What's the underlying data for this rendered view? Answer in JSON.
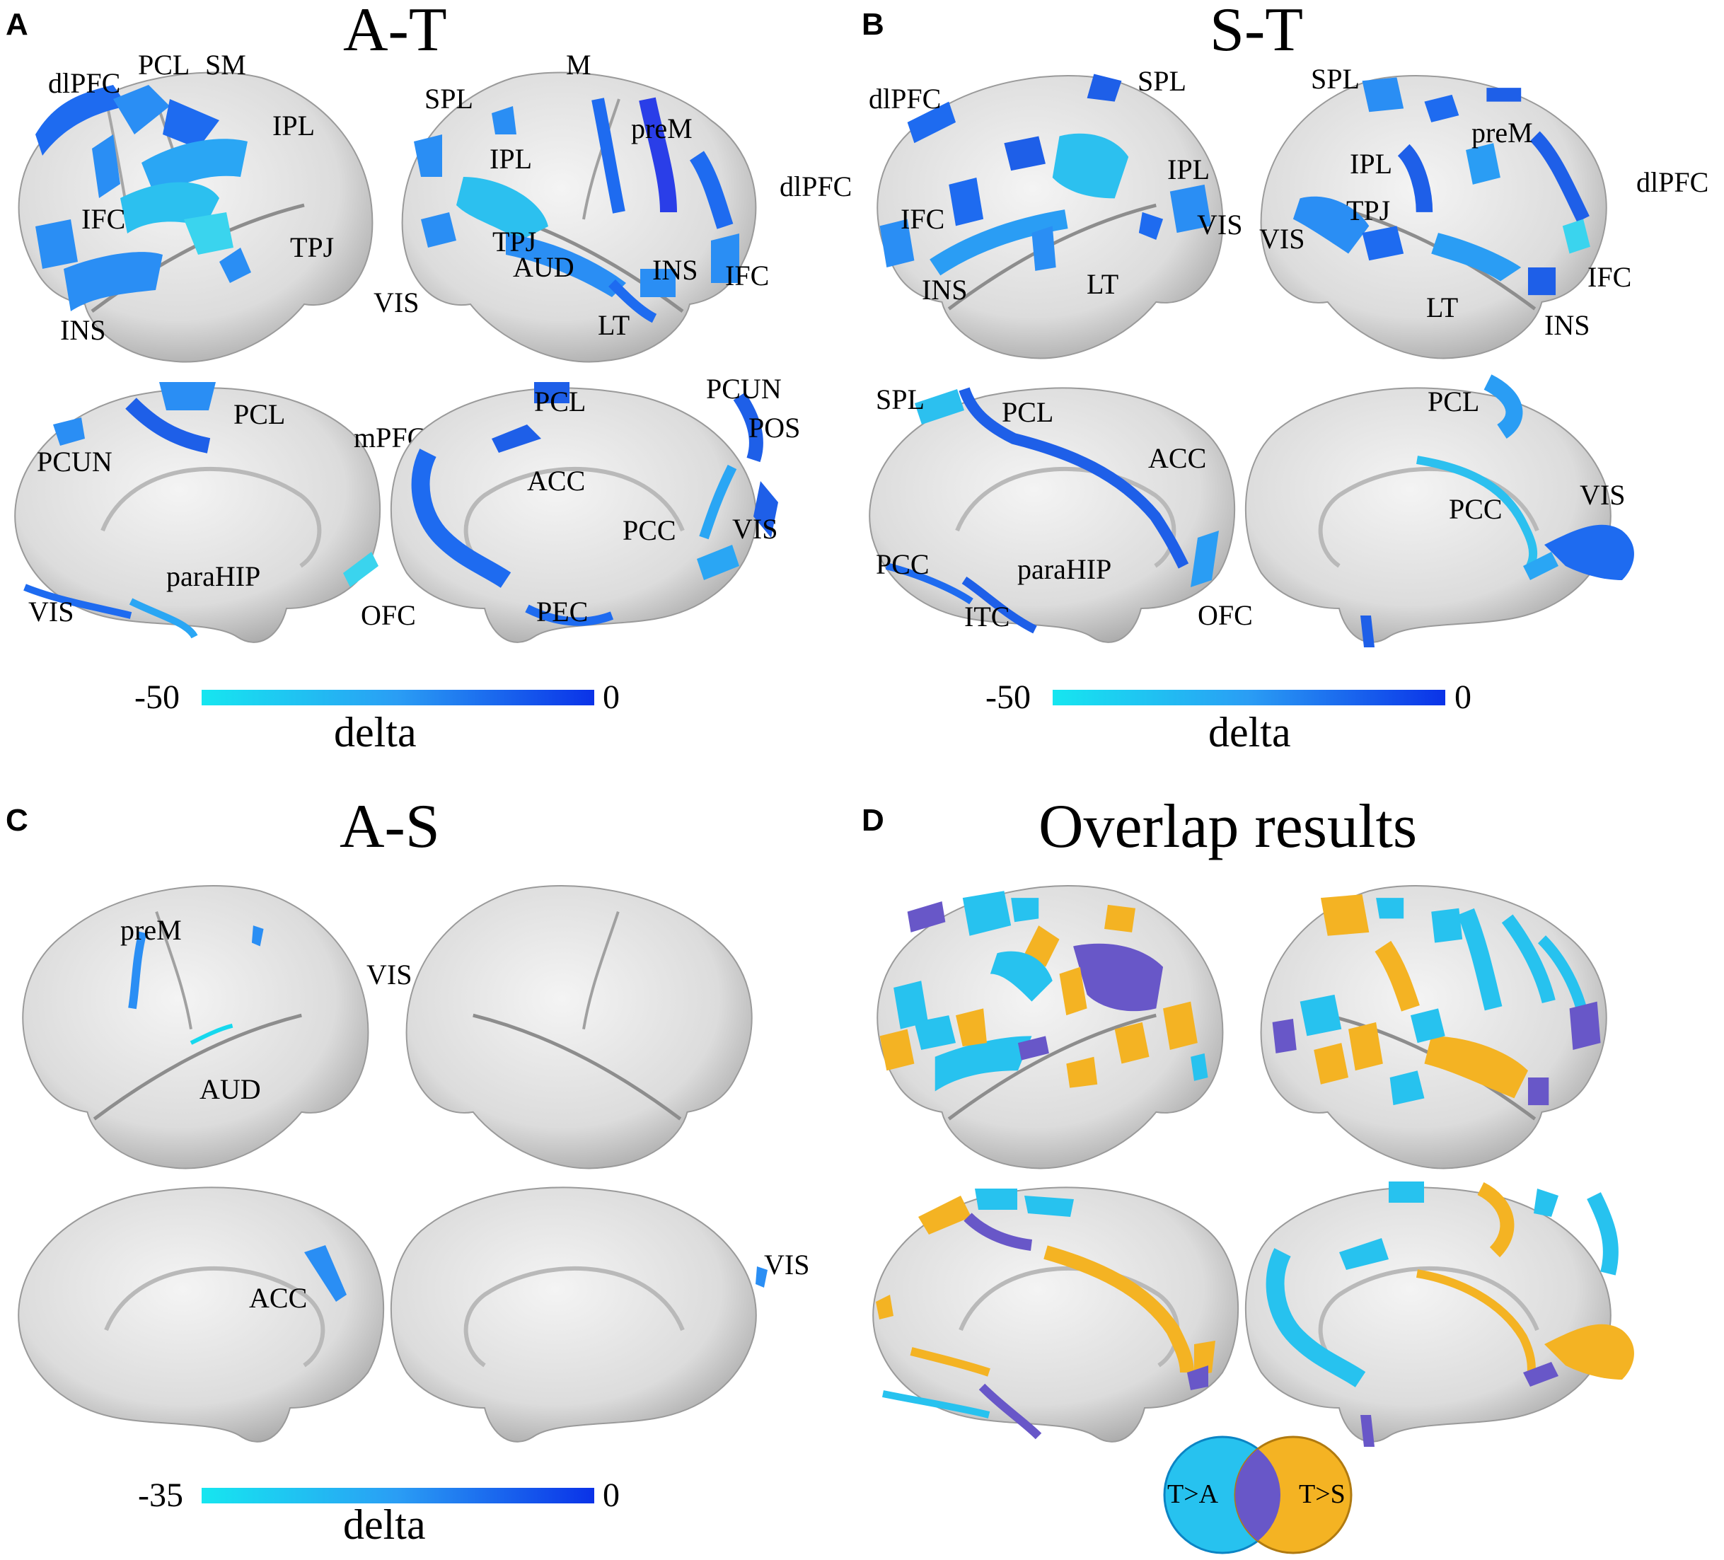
{
  "colors": {
    "brain_fill": "#d9d9d9",
    "blue_light": "#16d8ee",
    "blue_mid": "#2a9df4",
    "blue_dark": "#1240e0",
    "orange": "#f4b323",
    "purple": "#6857c8",
    "cyan_overlap": "#27c2ef"
  },
  "panels": {
    "A": {
      "letter": "A",
      "title": "A-T",
      "labels": {
        "dlPFC": "dlPFC",
        "PCL": "PCL",
        "SM": "SM",
        "IPL": "IPL",
        "IFC": "IFC",
        "TPJ": "TPJ",
        "INS": "INS",
        "VIS": "VIS",
        "SPL": "SPL",
        "M": "M",
        "preM": "preM",
        "IPL2": "IPL",
        "dlPFC2": "dlPFC",
        "TPJ2": "TPJ",
        "AUD": "AUD",
        "INS2": "INS",
        "IFC2": "IFC",
        "LT": "LT",
        "PCL3": "PCL",
        "PCUN": "PCUN",
        "mPFC": "mPFC",
        "paraHIP": "paraHIP",
        "VIS3": "VIS",
        "OFC": "OFC",
        "PCL4": "PCL",
        "PCUN4": "PCUN",
        "POS": "POS",
        "ACC": "ACC",
        "PCC": "PCC",
        "VIS4": "VIS",
        "PEC": "PEC"
      },
      "colorbar": {
        "min": "-50",
        "max": "0",
        "title": "delta"
      }
    },
    "B": {
      "letter": "B",
      "title": "S-T",
      "labels": {
        "dlPFC": "dlPFC",
        "SPL": "SPL",
        "IPL": "IPL",
        "IFC": "IFC",
        "VIS": "VIS",
        "INS": "INS",
        "LT": "LT",
        "SPL2": "SPL",
        "preM": "preM",
        "IPL2": "IPL",
        "dlPFC2": "dlPFC",
        "TPJ": "TPJ",
        "VIS2": "VIS",
        "IFC2": "IFC",
        "LT2": "LT",
        "INS2": "INS",
        "SPL3": "SPL",
        "PCL": "PCL",
        "ACC": "ACC",
        "PCC": "PCC",
        "paraHIP": "paraHIP",
        "ITC": "ITC",
        "OFC": "OFC",
        "PCL4": "PCL",
        "PCC4": "PCC",
        "VIS4": "VIS"
      },
      "colorbar": {
        "min": "-50",
        "max": "0",
        "title": "delta"
      }
    },
    "C": {
      "letter": "C",
      "title": "A-S",
      "labels": {
        "preM": "preM",
        "VIS": "VIS",
        "AUD": "AUD",
        "ACC": "ACC",
        "VIS4": "VIS"
      },
      "colorbar": {
        "min": "-35",
        "max": "0",
        "title": "delta"
      }
    },
    "D": {
      "letter": "D",
      "title": "Overlap results",
      "venn": {
        "left": "T>A",
        "right": "T>S"
      }
    }
  }
}
